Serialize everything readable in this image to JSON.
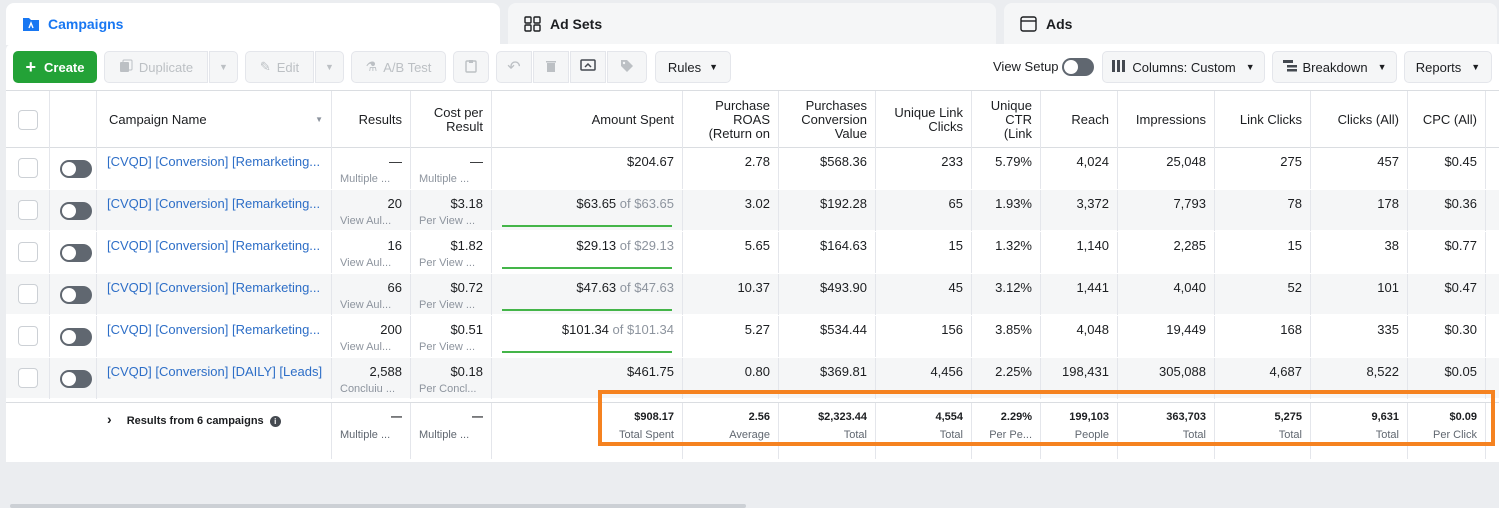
{
  "tabs": [
    {
      "label": "Campaigns",
      "icon": "campaigns-folder-icon"
    },
    {
      "label": "Ad Sets",
      "icon": "adsets-grid-icon"
    },
    {
      "label": "Ads",
      "icon": "ads-window-icon"
    }
  ],
  "toolbar": {
    "create": "Create",
    "duplicate": "Duplicate",
    "edit": "Edit",
    "ab_test": "A/B Test",
    "rules": "Rules",
    "view_setup": "View Setup",
    "columns": "Columns: Custom",
    "breakdown": "Breakdown",
    "reports": "Reports"
  },
  "headers": {
    "campaign_name": "Campaign Name",
    "results": "Results",
    "cost_per_result": "Cost per Result",
    "amount_spent": "Amount Spent",
    "purchase_roas": "Purchase ROAS (Return on",
    "purchases_conversion_value": "Purchases Conversion Value",
    "unique_link_clicks": "Unique Link Clicks",
    "unique_ctr": "Unique CTR (Link",
    "reach": "Reach",
    "impressions": "Impressions",
    "link_clicks": "Link Clicks",
    "clicks_all": "Clicks (All)",
    "cpc_all": "CPC (All)"
  },
  "rows": [
    {
      "name": "[CVQD] [Conversion] [Remarketing...",
      "results": "—",
      "results_sub": "Multiple ...",
      "cpr": "—",
      "cpr_sub": "Multiple ...",
      "spent": "$204.67",
      "budget": "",
      "roas": "2.78",
      "pcv": "$568.36",
      "ulc": "233",
      "uctr": "5.79%",
      "reach": "4,024",
      "impr": "25,048",
      "lc": "275",
      "clicks": "457",
      "cpc": "$0.45"
    },
    {
      "name": "[CVQD] [Conversion] [Remarketing...",
      "results": "20",
      "results_sub": "View Aul...",
      "cpr": "$3.18",
      "cpr_sub": "Per View ...",
      "spent": "$63.65",
      "budget": "of $63.65",
      "roas": "3.02",
      "pcv": "$192.28",
      "ulc": "65",
      "uctr": "1.93%",
      "reach": "3,372",
      "impr": "7,793",
      "lc": "78",
      "clicks": "178",
      "cpc": "$0.36"
    },
    {
      "name": "[CVQD] [Conversion] [Remarketing...",
      "results": "16",
      "results_sub": "View Aul...",
      "cpr": "$1.82",
      "cpr_sub": "Per View ...",
      "spent": "$29.13",
      "budget": "of $29.13",
      "roas": "5.65",
      "pcv": "$164.63",
      "ulc": "15",
      "uctr": "1.32%",
      "reach": "1,140",
      "impr": "2,285",
      "lc": "15",
      "clicks": "38",
      "cpc": "$0.77"
    },
    {
      "name": "[CVQD] [Conversion] [Remarketing...",
      "results": "66",
      "results_sub": "View Aul...",
      "cpr": "$0.72",
      "cpr_sub": "Per View ...",
      "spent": "$47.63",
      "budget": "of $47.63",
      "roas": "10.37",
      "pcv": "$493.90",
      "ulc": "45",
      "uctr": "3.12%",
      "reach": "1,441",
      "impr": "4,040",
      "lc": "52",
      "clicks": "101",
      "cpc": "$0.47"
    },
    {
      "name": "[CVQD] [Conversion] [Remarketing...",
      "results": "200",
      "results_sub": "View Aul...",
      "cpr": "$0.51",
      "cpr_sub": "Per View ...",
      "spent": "$101.34",
      "budget": "of $101.34",
      "roas": "5.27",
      "pcv": "$534.44",
      "ulc": "156",
      "uctr": "3.85%",
      "reach": "4,048",
      "impr": "19,449",
      "lc": "168",
      "clicks": "335",
      "cpc": "$0.30"
    },
    {
      "name": "[CVQD] [Conversion] [DAILY] [Leads]",
      "results": "2,588",
      "results_sub": "Concluiu ...",
      "cpr": "$0.18",
      "cpr_sub": "Per Concl...",
      "spent": "$461.75",
      "budget": "",
      "roas": "0.80",
      "pcv": "$369.81",
      "ulc": "4,456",
      "uctr": "2.25%",
      "reach": "198,431",
      "impr": "305,088",
      "lc": "4,687",
      "clicks": "8,522",
      "cpc": "$0.05"
    }
  ],
  "footer": {
    "label": "Results from 6 campaigns",
    "results": "—",
    "results_sub": "Multiple ...",
    "cpr": "—",
    "cpr_sub": "Multiple ...",
    "spent": "$908.17",
    "spent_sub": "Total Spent",
    "roas": "2.56",
    "roas_sub": "Average",
    "pcv": "$2,323.44",
    "pcv_sub": "Total",
    "ulc": "4,554",
    "ulc_sub": "Total",
    "uctr": "2.29%",
    "uctr_sub": "Per Pe...",
    "reach": "199,103",
    "reach_sub": "People",
    "impr": "363,703",
    "impr_sub": "Total",
    "lc": "5,275",
    "lc_sub": "Total",
    "clicks": "9,631",
    "clicks_sub": "Total",
    "cpc": "$0.09",
    "cpc_sub": "Per Click"
  },
  "colors": {
    "accent": "#1877f2",
    "create": "#23a237",
    "highlight": "#f58220",
    "budget_bar": "#44b549"
  }
}
